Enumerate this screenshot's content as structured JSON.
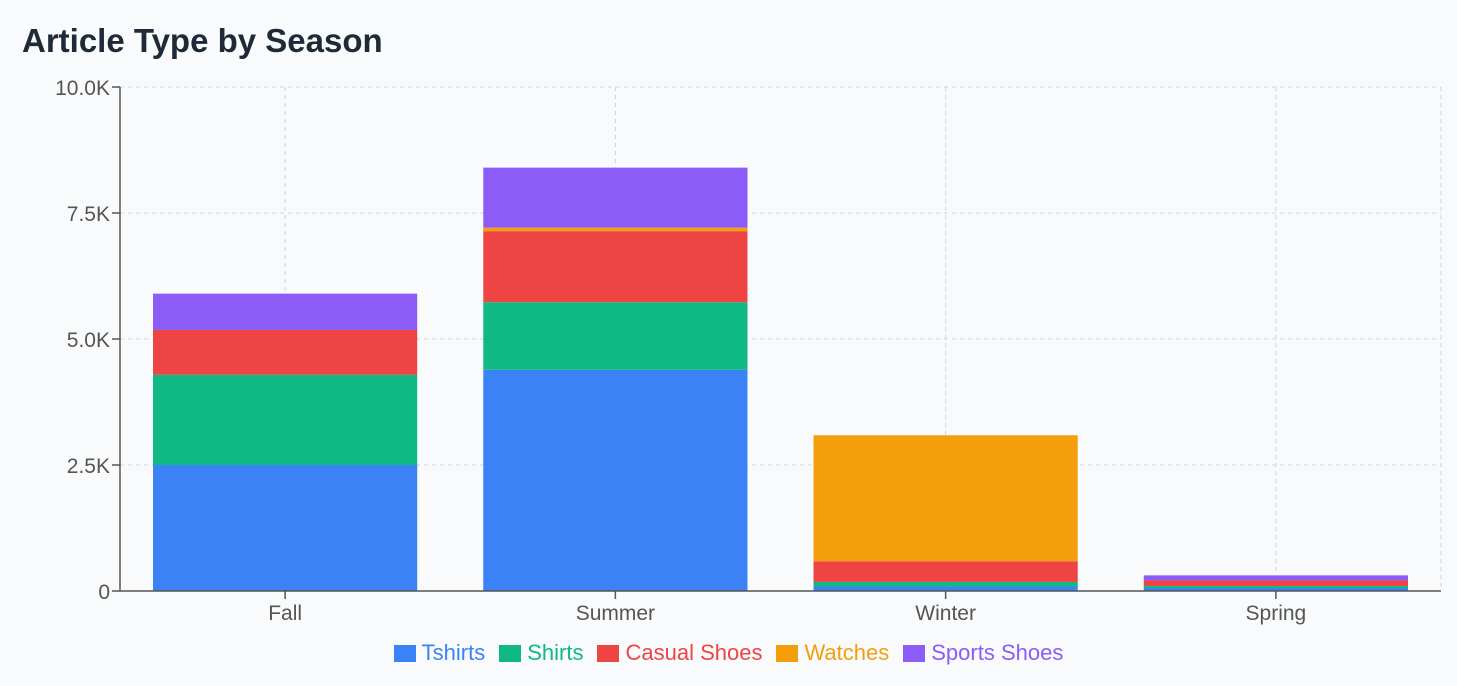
{
  "chart_data": {
    "type": "bar",
    "stacked": true,
    "title": "Article Type by Season",
    "xlabel": "",
    "ylabel": "",
    "categories": [
      "Fall",
      "Summer",
      "Winter",
      "Spring"
    ],
    "series": [
      {
        "name": "Tshirts",
        "color": "#3b82f6",
        "values": [
          2500,
          4390,
          90,
          60
        ]
      },
      {
        "name": "Shirts",
        "color": "#10b981",
        "values": [
          1790,
          1340,
          90,
          40
        ]
      },
      {
        "name": "Casual Shoes",
        "color": "#ef4444",
        "values": [
          890,
          1410,
          410,
          110
        ]
      },
      {
        "name": "Watches",
        "color": "#f59e0b",
        "values": [
          0,
          70,
          2500,
          0
        ]
      },
      {
        "name": "Sports Shoes",
        "color": "#8b5cf6",
        "values": [
          720,
          1190,
          0,
          100
        ]
      }
    ],
    "ylim": [
      0,
      10000
    ],
    "yticks": [
      0,
      2500,
      5000,
      7500,
      10000
    ],
    "ytick_labels": [
      "0",
      "2.5K",
      "5.0K",
      "7.5K",
      "10.0K"
    ],
    "grid": true,
    "legend_position": "bottom-center"
  }
}
